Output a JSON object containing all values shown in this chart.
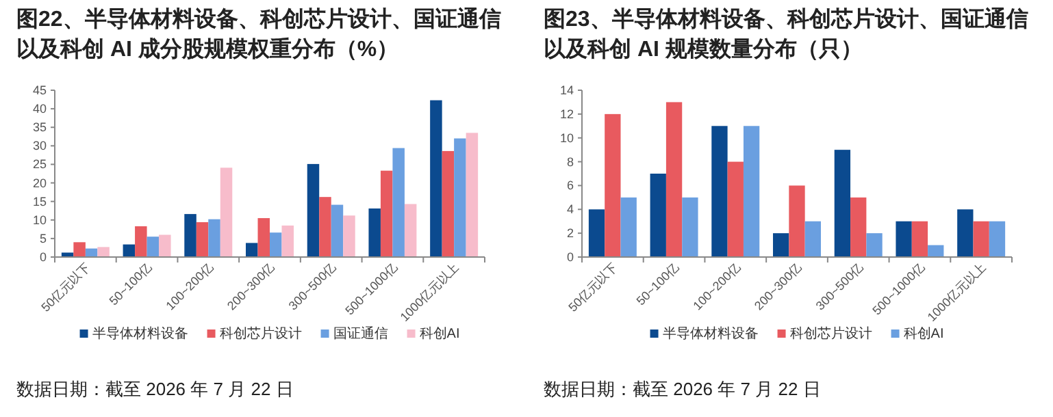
{
  "chart_data": [
    {
      "type": "bar",
      "title": "图22、半导体材料设备、科创芯片设计、国证通信以及科创 AI 成分股规模权重分布（%）",
      "categories": [
        "50亿元以下",
        "50~100亿",
        "100~200亿",
        "200~300亿",
        "300~500亿",
        "500~1000亿",
        "1000亿元以上"
      ],
      "series": [
        {
          "name": "半导体材料设备",
          "color": "#0b4a8f",
          "values": [
            1.2,
            3.4,
            11.6,
            3.8,
            25.1,
            13.1,
            42.3
          ]
        },
        {
          "name": "科创芯片设计",
          "color": "#e85a5f",
          "values": [
            4.0,
            8.3,
            9.4,
            10.5,
            16.2,
            23.3,
            28.6
          ]
        },
        {
          "name": "国证通信",
          "color": "#6a9fe0",
          "values": [
            2.3,
            5.5,
            10.2,
            6.6,
            14.1,
            29.4,
            32.0
          ]
        },
        {
          "name": "科创AI",
          "color": "#f7bccb",
          "values": [
            2.7,
            6.0,
            24.1,
            8.5,
            11.2,
            14.3,
            33.5
          ]
        }
      ],
      "ylim": [
        0,
        45
      ],
      "yticks": [
        0,
        5,
        10,
        15,
        20,
        25,
        30,
        35,
        40,
        45
      ],
      "legend": "bottom",
      "grid": false,
      "annotations": [
        "数据日期：截至 2026 年 7 月 22 日"
      ]
    },
    {
      "type": "bar",
      "title": "图23、半导体材料设备、科创芯片设计、国证通信以及科创 AI 规模数量分布（只）",
      "categories": [
        "50亿元以下",
        "50~100亿",
        "100~200亿",
        "200~300亿",
        "300~500亿",
        "500~1000亿",
        "1000亿元以上"
      ],
      "series": [
        {
          "name": "半导体材料设备",
          "color": "#0b4a8f",
          "values": [
            4,
            7,
            11,
            2,
            9,
            3,
            4
          ]
        },
        {
          "name": "科创芯片设计",
          "color": "#e85a5f",
          "values": [
            12,
            13,
            8,
            6,
            5,
            3,
            3
          ]
        },
        {
          "name": "科创AI",
          "color": "#6a9fe0",
          "values": [
            5,
            5,
            11,
            3,
            2,
            1,
            3
          ]
        }
      ],
      "ylim": [
        0,
        14
      ],
      "yticks": [
        0,
        2,
        4,
        6,
        8,
        10,
        12,
        14
      ],
      "legend": "bottom",
      "grid": false,
      "annotations": [
        "数据日期：截至 2026 年 7 月 22 日"
      ]
    }
  ]
}
